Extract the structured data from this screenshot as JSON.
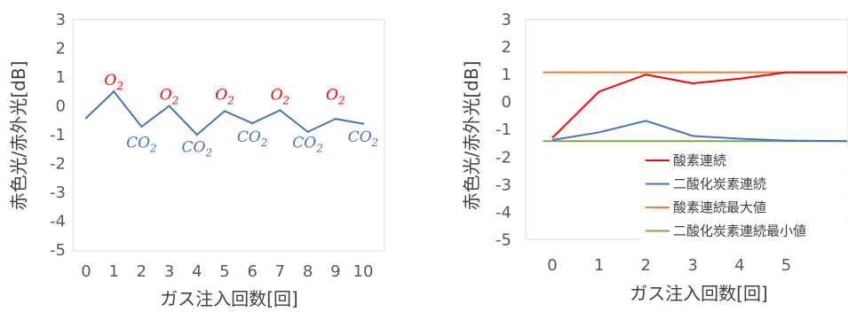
{
  "chart_data": [
    {
      "type": "line",
      "ylabel": "赤色光/赤外光[dB]",
      "xlabel": "ガス注入回数[回]",
      "x": [
        0,
        1,
        2,
        3,
        4,
        5,
        6,
        7,
        8,
        9,
        10
      ],
      "x_ticks": [
        "0",
        "1",
        "2",
        "3",
        "4",
        "5",
        "6",
        "7",
        "8",
        "9",
        "10"
      ],
      "y_ticks": [
        "3",
        "2",
        "1",
        "0",
        "-1",
        "-2",
        "-3",
        "-4",
        "-5"
      ],
      "ylim": [
        -5,
        3
      ],
      "series": [
        {
          "color": "#4472c4",
          "values": [
            -0.42,
            0.5,
            -0.72,
            0.0,
            -1.0,
            -0.18,
            -0.6,
            -0.15,
            -0.9,
            -0.45,
            -0.62
          ]
        }
      ],
      "annotations": [
        {
          "base": "O",
          "sub": "2",
          "x": 1,
          "y": 0.72,
          "color": "#ff0000"
        },
        {
          "base": "O",
          "sub": "2",
          "x": 3,
          "y": 0.22,
          "color": "#ff0000"
        },
        {
          "base": "O",
          "sub": "2",
          "x": 5,
          "y": 0.22,
          "color": "#ff0000"
        },
        {
          "base": "O",
          "sub": "2",
          "x": 7,
          "y": 0.22,
          "color": "#ff0000"
        },
        {
          "base": "O",
          "sub": "2",
          "x": 9,
          "y": 0.22,
          "color": "#ff0000"
        },
        {
          "base": "CO",
          "sub": "2",
          "x": 2,
          "y": -1.45,
          "color": "#4472c4"
        },
        {
          "base": "CO",
          "sub": "2",
          "x": 4,
          "y": -1.6,
          "color": "#4472c4"
        },
        {
          "base": "CO",
          "sub": "2",
          "x": 6,
          "y": -1.25,
          "color": "#4472c4"
        },
        {
          "base": "CO",
          "sub": "2",
          "x": 8,
          "y": -1.45,
          "color": "#4472c4"
        },
        {
          "base": "CO",
          "sub": "2",
          "x": 10,
          "y": -1.25,
          "color": "#4472c4"
        }
      ],
      "grid": false
    },
    {
      "type": "line",
      "ylabel": "赤色光/赤外光[dB]",
      "xlabel": "ガス注入回数[回]",
      "x_ticks": [
        "0",
        "1",
        "2",
        "3",
        "4",
        "5"
      ],
      "y_ticks": [
        "3",
        "2",
        "1",
        "0",
        "-1",
        "-2",
        "-3",
        "-4",
        "-5"
      ],
      "ylim": [
        -5,
        3
      ],
      "legend_position": "bottom-right",
      "series": [
        {
          "name": "酸素連続",
          "color": "#ff0000",
          "x": [
            0,
            1,
            2,
            3,
            4,
            5,
            6.3
          ],
          "values": [
            -1.3,
            0.38,
            1.0,
            0.68,
            0.85,
            1.08,
            1.08
          ]
        },
        {
          "name": "二酸化炭素連続",
          "color": "#4472c4",
          "x": [
            0,
            1,
            2,
            3,
            4,
            5,
            6.3
          ],
          "values": [
            -1.38,
            -1.1,
            -0.68,
            -1.23,
            -1.33,
            -1.4,
            -1.42
          ]
        },
        {
          "name": "酸素連続最大値",
          "color": "#ed7d31",
          "x": [
            -0.2,
            6.3
          ],
          "values": [
            1.08,
            1.08
          ]
        },
        {
          "name": "二酸化炭素連続最小値",
          "color": "#70ad47",
          "x": [
            -0.2,
            6.3
          ],
          "values": [
            -1.42,
            -1.42
          ]
        }
      ],
      "grid": false
    }
  ]
}
